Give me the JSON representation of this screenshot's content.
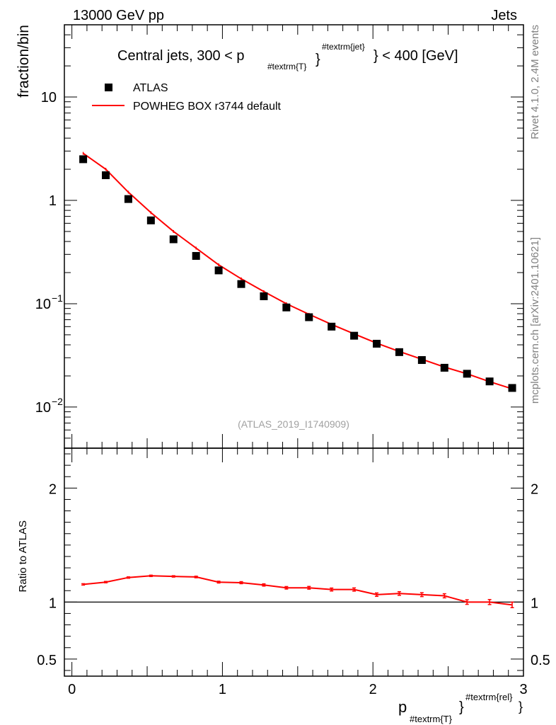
{
  "header": {
    "energy_label": "13000 GeV pp",
    "process_label": "Jets"
  },
  "side_text": {
    "rivet": "Rivet 4.1.0,  2.4M events",
    "mcplots": "mcplots.cern.ch [arXiv:2401.10621]"
  },
  "chart_data": [
    {
      "type": "scatter",
      "panel": "main",
      "title": "Central jets, 300 < p_{#textrm{T}}^{#textrm{jet}} < 400 [GeV]",
      "title_parts": {
        "main1": "Central jets, 300 < p",
        "sub": "#textrm{T}",
        "sup": "#textrm{jet}",
        "main2": "} < 400 [GeV]"
      },
      "ylabel": "fraction/bin",
      "yscale": "log",
      "ylim": [
        0.004,
        50
      ],
      "xlim": [
        -0.05,
        3.0
      ],
      "y_ticks": [
        {
          "value": 10,
          "label": "10"
        },
        {
          "value": 1,
          "label": "1"
        },
        {
          "value": 0.1,
          "label": "10",
          "exp": "−1"
        },
        {
          "value": 0.01,
          "label": "10",
          "exp": "−2"
        }
      ],
      "watermark": "(ATLAS_2019_I1740909)",
      "legend": {
        "position": "top-left",
        "entries": [
          "ATLAS",
          "POWHEG BOX r3744 default"
        ]
      },
      "x": [
        0.075,
        0.225,
        0.375,
        0.525,
        0.675,
        0.825,
        0.975,
        1.125,
        1.275,
        1.425,
        1.575,
        1.725,
        1.875,
        2.025,
        2.175,
        2.325,
        2.475,
        2.625,
        2.775,
        2.925
      ],
      "series": [
        {
          "name": "ATLAS",
          "marker": "square",
          "color": "#000000",
          "values": [
            2.5,
            1.75,
            1.03,
            0.64,
            0.42,
            0.29,
            0.21,
            0.155,
            0.118,
            0.092,
            0.074,
            0.06,
            0.049,
            0.041,
            0.034,
            0.0285,
            0.024,
            0.021,
            0.0177,
            0.0153
          ]
        },
        {
          "name": "POWHEG BOX r3744 default",
          "marker": "line",
          "color": "#ff0000",
          "values": [
            2.85,
            2.0,
            1.2,
            0.76,
            0.5,
            0.345,
            0.238,
            0.174,
            0.131,
            0.1,
            0.079,
            0.063,
            0.051,
            0.0415,
            0.0345,
            0.029,
            0.0244,
            0.021,
            0.0176,
            0.015
          ]
        }
      ]
    },
    {
      "type": "line",
      "panel": "ratio",
      "ylabel": "Ratio to ATLAS",
      "xlabel": "p_{#textrm{T}}^{#textrm{rel}}",
      "xlabel_parts": {
        "main": "p",
        "sub": "#textrm{T}",
        "close": "}",
        "sup": "#textrm{rel}"
      },
      "xlim": [
        -0.05,
        3.0
      ],
      "ylim": [
        0.35,
        2.35
      ],
      "reference_line": 1.0,
      "y_ticks": [
        {
          "value": 2,
          "label": "2"
        },
        {
          "value": 1,
          "label": "1"
        },
        {
          "value": 0.5,
          "label": "0.5"
        }
      ],
      "x_ticks": [
        {
          "value": 0,
          "label": "0"
        },
        {
          "value": 1,
          "label": "1"
        },
        {
          "value": 2,
          "label": "2"
        },
        {
          "value": 3,
          "label": "3"
        }
      ],
      "x": [
        0.075,
        0.225,
        0.375,
        0.525,
        0.675,
        0.825,
        0.975,
        1.125,
        1.275,
        1.425,
        1.575,
        1.725,
        1.875,
        2.025,
        2.175,
        2.325,
        2.475,
        2.625,
        2.775,
        2.925
      ],
      "series": [
        {
          "name": "POWHEG BOX r3744 default",
          "color": "#ff0000",
          "values": [
            1.155,
            1.175,
            1.215,
            1.23,
            1.225,
            1.22,
            1.175,
            1.17,
            1.15,
            1.125,
            1.125,
            1.11,
            1.11,
            1.065,
            1.075,
            1.065,
            1.055,
            1.0,
            1.0,
            0.975
          ],
          "errors": [
            0.006,
            0.006,
            0.006,
            0.006,
            0.006,
            0.007,
            0.008,
            0.009,
            0.01,
            0.011,
            0.012,
            0.013,
            0.014,
            0.015,
            0.016,
            0.017,
            0.018,
            0.02,
            0.022,
            0.024
          ]
        }
      ]
    }
  ]
}
